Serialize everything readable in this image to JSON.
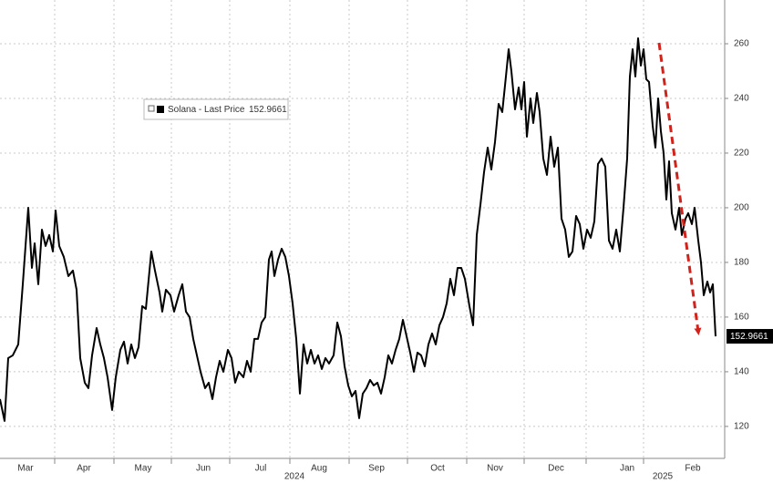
{
  "chart_data": {
    "type": "line",
    "series": [
      {
        "name": "Solana - Last Price",
        "color": "#000000",
        "values": [
          130,
          122,
          145,
          146,
          150,
          172,
          200,
          178,
          187,
          172,
          192,
          186,
          190,
          184,
          199,
          186,
          182,
          175,
          177,
          170,
          145,
          136,
          134,
          146,
          156,
          150,
          145,
          138,
          126,
          138,
          148,
          151,
          143,
          150,
          145,
          149,
          164,
          163,
          184,
          177,
          169,
          162,
          170,
          168,
          162,
          168,
          172,
          162,
          160,
          152,
          146,
          140,
          134,
          136,
          130,
          138,
          144,
          140,
          148,
          145,
          136,
          140,
          138,
          144,
          140,
          152,
          152,
          158,
          160,
          181,
          184,
          175,
          181,
          185,
          182,
          175,
          165,
          152,
          132,
          150,
          143,
          148,
          143,
          146,
          141,
          145,
          143,
          146,
          158,
          153,
          142,
          135,
          131,
          133,
          123,
          132,
          134,
          137,
          135,
          136,
          132,
          138,
          146,
          143,
          148,
          152,
          159,
          153,
          147,
          140,
          147,
          146,
          142,
          150,
          154,
          150,
          157,
          160,
          165,
          174,
          168,
          178,
          178,
          174,
          164,
          157,
          190,
          201,
          213,
          222,
          214,
          224,
          238,
          235,
          248,
          258,
          250,
          236,
          244,
          236,
          246,
          226,
          240,
          231,
          242,
          235,
          218,
          212,
          226,
          215,
          222,
          196,
          192,
          182,
          184,
          197,
          194,
          185,
          192,
          189,
          195,
          216,
          218,
          215,
          188,
          185,
          192,
          184,
          200,
          218,
          248,
          258,
          248,
          262,
          252,
          258,
          247,
          246,
          230,
          222,
          240,
          228,
          220,
          203,
          217,
          198,
          192,
          200,
          190,
          196,
          198,
          194,
          200,
          188,
          180,
          168,
          173,
          169,
          172,
          152.9661
        ]
      }
    ],
    "x": [
      0,
      2.5,
      4.5,
      7,
      10,
      12.5,
      15.5,
      17.5,
      19,
      21,
      23,
      25,
      27,
      29,
      30.5,
      32.5,
      35,
      37.5,
      40,
      42,
      44,
      46.5,
      48.5,
      50.5,
      53,
      55,
      57,
      59,
      61.5,
      63.5,
      66,
      68,
      70,
      72,
      74,
      76,
      78,
      80,
      83,
      85,
      87.5,
      89,
      91,
      93.5,
      95.5,
      98,
      100,
      102,
      104,
      106,
      108,
      110,
      112.5,
      114.5,
      116.5,
      118.5,
      120.5,
      122.5,
      125,
      127,
      129,
      131,
      133.5,
      135.5,
      137.5,
      139.5,
      141.5,
      143.5,
      145.5,
      147.5,
      149,
      150.5,
      152.5,
      154.5,
      156.5,
      158.5,
      160.5,
      162.5,
      164.5,
      166.5,
      168.5,
      170.5,
      172.5,
      174.5,
      176.5,
      178.5,
      180.5,
      183,
      185,
      187,
      189,
      191,
      193,
      195,
      197,
      199,
      201,
      203,
      205,
      207,
      209,
      211,
      213,
      215,
      217,
      219,
      221,
      223,
      225,
      227,
      229,
      231,
      233,
      235,
      237,
      239,
      241,
      243,
      245,
      247,
      249,
      251,
      253,
      255,
      257.5,
      259.5,
      261.5,
      263.5,
      265.5,
      267.5,
      269.5,
      271.5,
      273.5,
      275.5,
      277.5,
      279,
      280.5,
      282.5,
      284.5,
      286,
      287.5,
      289,
      291,
      292.5,
      294.5,
      296,
      298,
      300,
      302,
      304,
      306,
      308,
      310,
      312,
      314,
      316,
      318,
      320,
      322,
      324,
      326,
      328,
      330,
      332,
      334,
      336,
      338,
      340,
      342,
      344,
      345.5,
      347,
      348.5,
      350,
      351.5,
      353,
      354.5,
      356,
      358,
      359.5,
      361,
      362.5,
      364,
      365.5,
      367,
      368.5,
      370.5,
      372.5,
      374,
      376,
      377.5,
      379.5,
      381,
      383,
      384.5,
      386,
      388,
      389.5,
      391,
      392.5
    ],
    "xlim": [
      0,
      397.5
    ],
    "xticks": [
      {
        "value": 14,
        "label": "Mar"
      },
      {
        "value": 46,
        "label": "Apr"
      },
      {
        "value": 78.5,
        "label": "May"
      },
      {
        "value": 111.5,
        "label": "Jun"
      },
      {
        "value": 143,
        "label": "Jul"
      },
      {
        "value": 175,
        "label": "Aug"
      },
      {
        "value": 206.5,
        "label": "Sep"
      },
      {
        "value": 240,
        "label": "Oct"
      },
      {
        "value": 271.5,
        "label": "Nov"
      },
      {
        "value": 305,
        "label": "Dec"
      },
      {
        "value": 344,
        "label": "Jan"
      },
      {
        "value": 380,
        "label": "Feb"
      }
    ],
    "x_grid": [
      30,
      62.5,
      94,
      126,
      159,
      191.5,
      223.5,
      256,
      287.5,
      321.5,
      353
    ],
    "year_labels": [
      {
        "value": 161.5,
        "label": "2024"
      },
      {
        "value": 363.5,
        "label": "2025"
      }
    ],
    "ylim": [
      108.3,
      276
    ],
    "yticks": [
      120,
      140,
      160,
      180,
      200,
      220,
      240,
      260
    ],
    "y_axis_side": "right",
    "grid": true,
    "legend": "upper left"
  }
}
